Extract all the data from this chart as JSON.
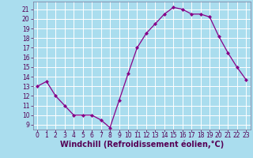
{
  "x": [
    0,
    1,
    2,
    3,
    4,
    5,
    6,
    7,
    8,
    9,
    10,
    11,
    12,
    13,
    14,
    15,
    16,
    17,
    18,
    19,
    20,
    21,
    22,
    23
  ],
  "y": [
    13,
    13.5,
    12,
    11,
    10,
    10,
    10,
    9.5,
    8.7,
    11.5,
    14.3,
    17.0,
    18.5,
    19.5,
    20.5,
    21.2,
    21.0,
    20.5,
    20.5,
    20.2,
    18.2,
    16.5,
    15.0,
    13.7
  ],
  "line_color": "#880088",
  "marker": "D",
  "marker_size": 2,
  "bg_color": "#aaddee",
  "grid_color": "#ffffff",
  "xlabel": "Windchill (Refroidissement éolien,°C)",
  "xlim": [
    -0.5,
    23.5
  ],
  "ylim": [
    8.5,
    21.8
  ],
  "yticks": [
    9,
    10,
    11,
    12,
    13,
    14,
    15,
    16,
    17,
    18,
    19,
    20,
    21
  ],
  "xticks": [
    0,
    1,
    2,
    3,
    4,
    5,
    6,
    7,
    8,
    9,
    10,
    11,
    12,
    13,
    14,
    15,
    16,
    17,
    18,
    19,
    20,
    21,
    22,
    23
  ],
  "xtick_labels": [
    "0",
    "1",
    "2",
    "3",
    "4",
    "5",
    "6",
    "7",
    "8",
    "9",
    "10",
    "11",
    "12",
    "13",
    "14",
    "15",
    "16",
    "17",
    "18",
    "19",
    "20",
    "21",
    "22",
    "23"
  ],
  "tick_fontsize": 5.5,
  "xlabel_fontsize": 7,
  "line_width": 0.9
}
